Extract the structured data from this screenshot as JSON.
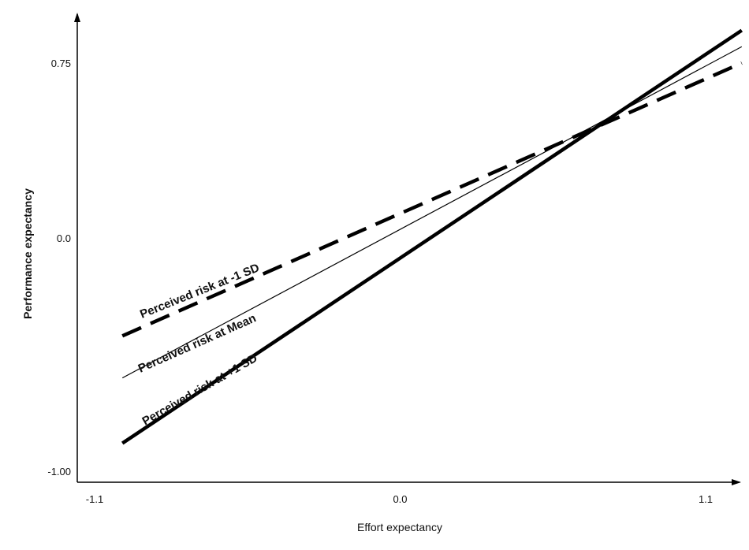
{
  "chart_data": {
    "type": "line",
    "xlabel": "Effort expectancy",
    "ylabel": "Performance expectancy",
    "xlim": [
      -1.1,
      1.1
    ],
    "ylim": [
      -1.0,
      0.75
    ],
    "x_ticks": [
      {
        "value": -1.1,
        "label": "-1.1"
      },
      {
        "value": 0.0,
        "label": "0.0"
      },
      {
        "value": 1.1,
        "label": "1.1"
      }
    ],
    "y_ticks": [
      {
        "value": -1.0,
        "label": "-1.00"
      },
      {
        "value": 0.0,
        "label": "0.0"
      },
      {
        "value": 0.75,
        "label": "0.75"
      }
    ],
    "grid": false,
    "series": [
      {
        "name": "Perceived risk at -1 SD",
        "style": "dashed",
        "color": "#000000",
        "x": [
          -1.0,
          1.23
        ],
        "y": [
          -0.42,
          0.75
        ]
      },
      {
        "name": "Perceived risk at Mean",
        "style": "thin",
        "color": "#000000",
        "x": [
          -1.0,
          1.23
        ],
        "y": [
          -0.6,
          0.82
        ]
      },
      {
        "name": "Perceived risk at +1 SD",
        "style": "thick",
        "color": "#000000",
        "x": [
          -1.0,
          1.23
        ],
        "y": [
          -0.88,
          0.89
        ]
      }
    ]
  }
}
